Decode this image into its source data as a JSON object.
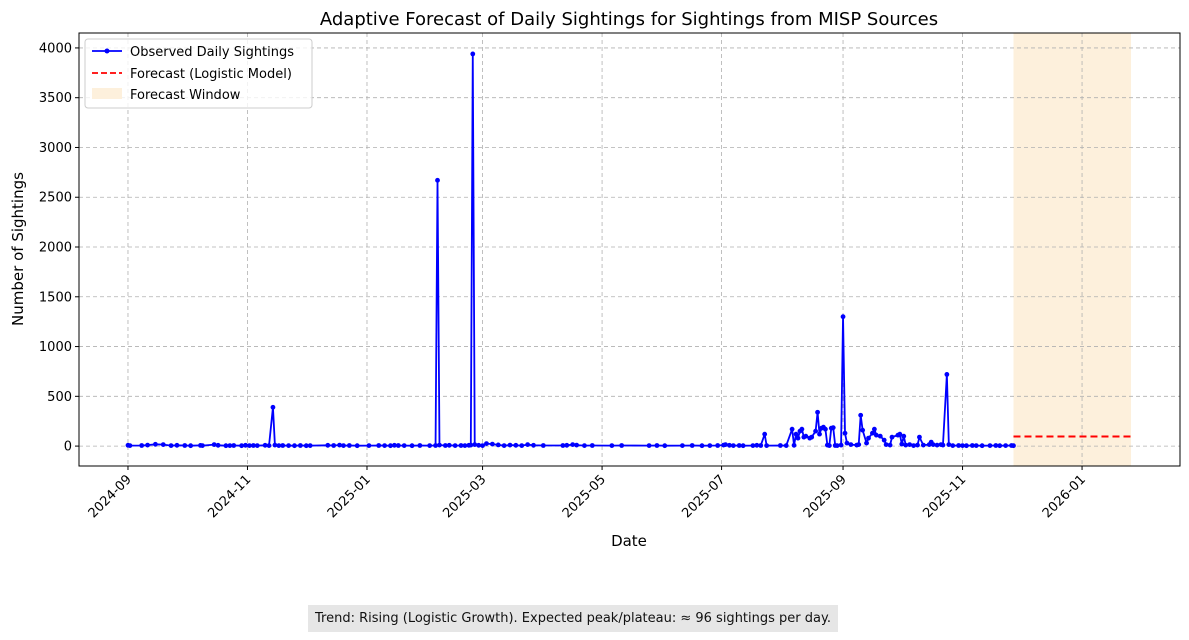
{
  "chart_data": {
    "type": "line",
    "title": "Adaptive Forecast of Daily Sightings for Sightings from MISP Sources",
    "xlabel": "Date",
    "ylabel": "Number of Sightings",
    "x_ticks": [
      "2024-09",
      "2024-11",
      "2025-01",
      "2025-03",
      "2025-05",
      "2025-07",
      "2025-09",
      "2025-11",
      "2026-01"
    ],
    "y_ticks": [
      0,
      500,
      1000,
      1500,
      2000,
      2500,
      3000,
      3500,
      4000
    ],
    "ylim": [
      -200,
      4150
    ],
    "xlim": [
      "2024-08-07",
      "2026-02-20"
    ],
    "grid": true,
    "legend_position": "top-left",
    "colors": {
      "observed": "#0000ff",
      "forecast": "#ff0000",
      "window": "#fdf0dc"
    },
    "legend": [
      {
        "label": "Observed Daily Sightings",
        "style": "line-marker"
      },
      {
        "label": "Forecast (Logistic Model)",
        "style": "dashed"
      },
      {
        "label": "Forecast Window",
        "style": "patch"
      }
    ],
    "series": [
      {
        "name": "Observed Daily Sightings",
        "points": [
          [
            "2024-09-01",
            8
          ],
          [
            "2024-09-02",
            5
          ],
          [
            "2024-09-08",
            6
          ],
          [
            "2024-09-11",
            10
          ],
          [
            "2024-09-15",
            18
          ],
          [
            "2024-09-19",
            15
          ],
          [
            "2024-09-23",
            5
          ],
          [
            "2024-09-26",
            8
          ],
          [
            "2024-09-30",
            6
          ],
          [
            "2024-10-03",
            4
          ],
          [
            "2024-10-08",
            7
          ],
          [
            "2024-10-09",
            5
          ],
          [
            "2024-10-15",
            15
          ],
          [
            "2024-10-17",
            8
          ],
          [
            "2024-10-21",
            4
          ],
          [
            "2024-10-23",
            5
          ],
          [
            "2024-10-25",
            6
          ],
          [
            "2024-10-29",
            4
          ],
          [
            "2024-10-31",
            8
          ],
          [
            "2024-11-02",
            5
          ],
          [
            "2024-11-04",
            6
          ],
          [
            "2024-11-06",
            5
          ],
          [
            "2024-11-10",
            8
          ],
          [
            "2024-11-12",
            5
          ],
          [
            "2024-11-14",
            390
          ],
          [
            "2024-11-15",
            10
          ],
          [
            "2024-11-17",
            5
          ],
          [
            "2024-11-19",
            6
          ],
          [
            "2024-11-22",
            5
          ],
          [
            "2024-11-25",
            4
          ],
          [
            "2024-11-28",
            6
          ],
          [
            "2024-12-01",
            4
          ],
          [
            "2024-12-03",
            5
          ],
          [
            "2024-12-12",
            8
          ],
          [
            "2024-12-15",
            6
          ],
          [
            "2024-12-18",
            10
          ],
          [
            "2024-12-20",
            5
          ],
          [
            "2024-12-23",
            6
          ],
          [
            "2024-12-27",
            4
          ],
          [
            "2025-01-02",
            5
          ],
          [
            "2025-01-07",
            6
          ],
          [
            "2025-01-10",
            5
          ],
          [
            "2025-01-13",
            4
          ],
          [
            "2025-01-15",
            8
          ],
          [
            "2025-01-17",
            6
          ],
          [
            "2025-01-20",
            5
          ],
          [
            "2025-01-24",
            4
          ],
          [
            "2025-01-28",
            6
          ],
          [
            "2025-02-02",
            5
          ],
          [
            "2025-02-05",
            6
          ],
          [
            "2025-02-06",
            2670
          ],
          [
            "2025-02-07",
            10
          ],
          [
            "2025-02-10",
            6
          ],
          [
            "2025-02-12",
            8
          ],
          [
            "2025-02-15",
            5
          ],
          [
            "2025-02-18",
            6
          ],
          [
            "2025-02-20",
            5
          ],
          [
            "2025-02-22",
            8
          ],
          [
            "2025-02-23",
            10
          ],
          [
            "2025-02-24",
            3940
          ],
          [
            "2025-02-25",
            15
          ],
          [
            "2025-02-27",
            8
          ],
          [
            "2025-03-01",
            5
          ],
          [
            "2025-03-03",
            25
          ],
          [
            "2025-03-06",
            20
          ],
          [
            "2025-03-09",
            12
          ],
          [
            "2025-03-12",
            5
          ],
          [
            "2025-03-15",
            10
          ],
          [
            "2025-03-18",
            8
          ],
          [
            "2025-03-21",
            5
          ],
          [
            "2025-03-24",
            15
          ],
          [
            "2025-03-27",
            8
          ],
          [
            "2025-04-01",
            6
          ],
          [
            "2025-04-11",
            6
          ],
          [
            "2025-04-13",
            8
          ],
          [
            "2025-04-16",
            15
          ],
          [
            "2025-04-18",
            10
          ],
          [
            "2025-04-22",
            5
          ],
          [
            "2025-04-26",
            6
          ],
          [
            "2025-05-06",
            5
          ],
          [
            "2025-05-11",
            6
          ],
          [
            "2025-05-25",
            5
          ],
          [
            "2025-05-29",
            6
          ],
          [
            "2025-06-02",
            4
          ],
          [
            "2025-06-11",
            5
          ],
          [
            "2025-06-16",
            6
          ],
          [
            "2025-06-21",
            4
          ],
          [
            "2025-06-25",
            5
          ],
          [
            "2025-06-29",
            6
          ],
          [
            "2025-07-02",
            10
          ],
          [
            "2025-07-03",
            15
          ],
          [
            "2025-07-05",
            8
          ],
          [
            "2025-07-07",
            5
          ],
          [
            "2025-07-10",
            6
          ],
          [
            "2025-07-12",
            4
          ],
          [
            "2025-07-17",
            5
          ],
          [
            "2025-07-19",
            8
          ],
          [
            "2025-07-21",
            6
          ],
          [
            "2025-07-23",
            120
          ],
          [
            "2025-07-24",
            5
          ],
          [
            "2025-07-31",
            6
          ],
          [
            "2025-08-03",
            5
          ],
          [
            "2025-08-06",
            170
          ],
          [
            "2025-08-07",
            8
          ],
          [
            "2025-08-08",
            120
          ],
          [
            "2025-08-09",
            80
          ],
          [
            "2025-08-10",
            150
          ],
          [
            "2025-08-11",
            170
          ],
          [
            "2025-08-12",
            90
          ],
          [
            "2025-08-13",
            100
          ],
          [
            "2025-08-15",
            80
          ],
          [
            "2025-08-16",
            90
          ],
          [
            "2025-08-18",
            150
          ],
          [
            "2025-08-19",
            340
          ],
          [
            "2025-08-20",
            120
          ],
          [
            "2025-08-21",
            180
          ],
          [
            "2025-08-22",
            190
          ],
          [
            "2025-08-23",
            170
          ],
          [
            "2025-08-24",
            10
          ],
          [
            "2025-08-25",
            5
          ],
          [
            "2025-08-26",
            180
          ],
          [
            "2025-08-27",
            185
          ],
          [
            "2025-08-28",
            6
          ],
          [
            "2025-08-29",
            5
          ],
          [
            "2025-08-31",
            10
          ],
          [
            "2025-09-01",
            1300
          ],
          [
            "2025-09-02",
            130
          ],
          [
            "2025-09-03",
            30
          ],
          [
            "2025-09-05",
            15
          ],
          [
            "2025-09-08",
            10
          ],
          [
            "2025-09-09",
            15
          ],
          [
            "2025-09-10",
            310
          ],
          [
            "2025-09-11",
            160
          ],
          [
            "2025-09-13",
            30
          ],
          [
            "2025-09-14",
            80
          ],
          [
            "2025-09-16",
            130
          ],
          [
            "2025-09-17",
            170
          ],
          [
            "2025-09-18",
            110
          ],
          [
            "2025-09-20",
            100
          ],
          [
            "2025-09-22",
            60
          ],
          [
            "2025-09-23",
            15
          ],
          [
            "2025-09-25",
            10
          ],
          [
            "2025-09-26",
            90
          ],
          [
            "2025-09-29",
            110
          ],
          [
            "2025-09-30",
            120
          ],
          [
            "2025-10-01",
            20
          ],
          [
            "2025-10-02",
            100
          ],
          [
            "2025-10-03",
            10
          ],
          [
            "2025-10-05",
            15
          ],
          [
            "2025-10-07",
            5
          ],
          [
            "2025-10-09",
            10
          ],
          [
            "2025-10-10",
            90
          ],
          [
            "2025-10-12",
            10
          ],
          [
            "2025-10-15",
            15
          ],
          [
            "2025-10-16",
            40
          ],
          [
            "2025-10-17",
            15
          ],
          [
            "2025-10-19",
            10
          ],
          [
            "2025-10-21",
            15
          ],
          [
            "2025-10-22",
            10
          ],
          [
            "2025-10-24",
            720
          ],
          [
            "2025-10-25",
            15
          ],
          [
            "2025-10-27",
            5
          ],
          [
            "2025-10-30",
            6
          ],
          [
            "2025-11-01",
            5
          ],
          [
            "2025-11-03",
            4
          ],
          [
            "2025-11-06",
            6
          ],
          [
            "2025-11-08",
            5
          ],
          [
            "2025-11-11",
            4
          ],
          [
            "2025-11-15",
            5
          ],
          [
            "2025-11-18",
            6
          ],
          [
            "2025-11-20",
            4
          ],
          [
            "2025-11-23",
            5
          ],
          [
            "2025-11-26",
            6
          ],
          [
            "2025-11-27",
            4
          ]
        ]
      },
      {
        "name": "Forecast (Logistic Model)",
        "points": [
          [
            "2025-11-27",
            96
          ],
          [
            "2026-01-26",
            96
          ]
        ]
      }
    ],
    "forecast_window": [
      "2025-11-27",
      "2026-01-26"
    ]
  },
  "annotation": "Trend: Rising (Logistic Growth). Expected peak/plateau:  ≈  96 sightings per day."
}
